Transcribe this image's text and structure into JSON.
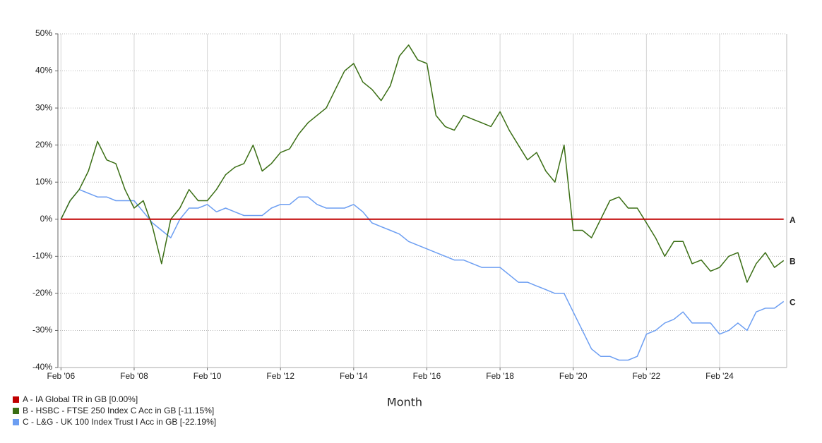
{
  "chart_data": {
    "type": "line",
    "x_label": "Month",
    "xlim": [
      "2006-01",
      "2025-12"
    ],
    "xticks": [
      {
        "value": "2006-02",
        "label": "Feb '06"
      },
      {
        "value": "2008-02",
        "label": "Feb '08"
      },
      {
        "value": "2010-02",
        "label": "Feb '10"
      },
      {
        "value": "2012-02",
        "label": "Feb '12"
      },
      {
        "value": "2014-02",
        "label": "Feb '14"
      },
      {
        "value": "2016-02",
        "label": "Feb '16"
      },
      {
        "value": "2018-02",
        "label": "Feb '18"
      },
      {
        "value": "2020-02",
        "label": "Feb '20"
      },
      {
        "value": "2022-02",
        "label": "Feb '22"
      },
      {
        "value": "2024-02",
        "label": "Feb '24"
      }
    ],
    "ylim": [
      -40,
      50
    ],
    "yticks": [
      {
        "value": -40,
        "label": "-40%"
      },
      {
        "value": -30,
        "label": "-30%"
      },
      {
        "value": -20,
        "label": "-20%"
      },
      {
        "value": -10,
        "label": "-10%"
      },
      {
        "value": 0,
        "label": "0%"
      },
      {
        "value": 10,
        "label": "10%"
      },
      {
        "value": 20,
        "label": "20%"
      },
      {
        "value": 30,
        "label": "30%"
      },
      {
        "value": 40,
        "label": "40%"
      },
      {
        "value": 50,
        "label": "50%"
      }
    ],
    "grid": true,
    "legend": "bottom-left",
    "x": [
      "2006-02",
      "2006-05",
      "2006-08",
      "2006-11",
      "2007-02",
      "2007-05",
      "2007-08",
      "2007-11",
      "2008-02",
      "2008-05",
      "2008-08",
      "2008-11",
      "2009-02",
      "2009-05",
      "2009-08",
      "2009-11",
      "2010-02",
      "2010-05",
      "2010-08",
      "2010-11",
      "2011-02",
      "2011-05",
      "2011-08",
      "2011-11",
      "2012-02",
      "2012-05",
      "2012-08",
      "2012-11",
      "2013-02",
      "2013-05",
      "2013-08",
      "2013-11",
      "2014-02",
      "2014-05",
      "2014-08",
      "2014-11",
      "2015-02",
      "2015-05",
      "2015-08",
      "2015-11",
      "2016-02",
      "2016-05",
      "2016-08",
      "2016-11",
      "2017-02",
      "2017-05",
      "2017-08",
      "2017-11",
      "2018-02",
      "2018-05",
      "2018-08",
      "2018-11",
      "2019-02",
      "2019-05",
      "2019-08",
      "2019-11",
      "2020-02",
      "2020-05",
      "2020-08",
      "2020-11",
      "2021-02",
      "2021-05",
      "2021-08",
      "2021-11",
      "2022-02",
      "2022-05",
      "2022-08",
      "2022-11",
      "2023-02",
      "2023-05",
      "2023-08",
      "2023-11",
      "2024-02",
      "2024-05",
      "2024-08",
      "2024-11",
      "2025-02",
      "2025-05",
      "2025-08",
      "2025-11"
    ],
    "series": [
      {
        "name": "C - L&G - UK 100 Index Trust I Acc in GB [-22.19%]",
        "end_label": "C",
        "color": "#6c9ef2",
        "values": [
          0,
          5,
          8,
          7,
          6,
          6,
          5,
          5,
          5,
          2,
          -1,
          -3,
          -5,
          0,
          3,
          3,
          4,
          2,
          3,
          2,
          1,
          1,
          1,
          3,
          4,
          4,
          6,
          6,
          4,
          3,
          3,
          3,
          4,
          2,
          -1,
          -2,
          -3,
          -4,
          -6,
          -7,
          -8,
          -9,
          -10,
          -11,
          -11,
          -12,
          -13,
          -13,
          -13,
          -15,
          -17,
          -17,
          -18,
          -19,
          -20,
          -20,
          -25,
          -30,
          -35,
          -37,
          -37,
          -38,
          -38,
          -37,
          -31,
          -30,
          -28,
          -27,
          -25,
          -28,
          -28,
          -28,
          -31,
          -30,
          -28,
          -30,
          -25,
          -24,
          -24,
          -22.19
        ]
      },
      {
        "name": "B - HSBC - FTSE 250 Index C Acc in GB [-11.15%]",
        "end_label": "B",
        "color": "#3a6e14",
        "values": [
          0,
          5,
          8,
          13,
          21,
          16,
          15,
          8,
          3,
          5,
          -2,
          -12,
          0,
          3,
          8,
          5,
          5,
          8,
          12,
          14,
          15,
          20,
          13,
          15,
          18,
          19,
          23,
          26,
          28,
          30,
          35,
          40,
          42,
          37,
          35,
          32,
          36,
          44,
          47,
          43,
          42,
          28,
          25,
          24,
          28,
          27,
          26,
          25,
          29,
          24,
          20,
          16,
          18,
          13,
          10,
          20,
          -3,
          -3,
          -5,
          0,
          5,
          6,
          3,
          3,
          -1,
          -5,
          -10,
          -6,
          -6,
          -12,
          -11,
          -14,
          -13,
          -10,
          -9,
          -17,
          -12,
          -9,
          -13,
          -11.15
        ]
      },
      {
        "name": "A - IA Global TR in GB [0.00%]",
        "end_label": "A",
        "color": "#c00000",
        "values": [
          0,
          0,
          0,
          0,
          0,
          0,
          0,
          0,
          0,
          0,
          0,
          0,
          0,
          0,
          0,
          0,
          0,
          0,
          0,
          0,
          0,
          0,
          0,
          0,
          0,
          0,
          0,
          0,
          0,
          0,
          0,
          0,
          0,
          0,
          0,
          0,
          0,
          0,
          0,
          0,
          0,
          0,
          0,
          0,
          0,
          0,
          0,
          0,
          0,
          0,
          0,
          0,
          0,
          0,
          0,
          0,
          0,
          0,
          0,
          0,
          0,
          0,
          0,
          0,
          0,
          0,
          0,
          0,
          0,
          0,
          0,
          0,
          0,
          0,
          0,
          0,
          0,
          0,
          0,
          0
        ]
      }
    ]
  }
}
